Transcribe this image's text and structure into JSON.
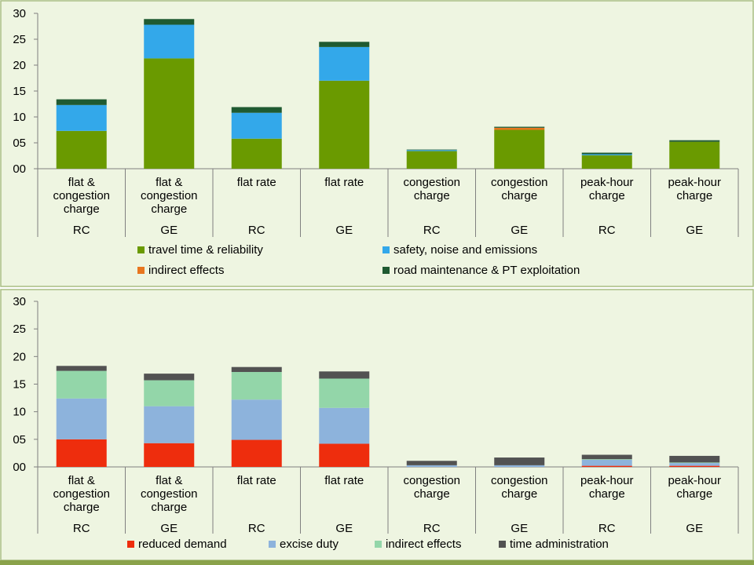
{
  "colors": {
    "panel_background": "#eef5e1",
    "panel_border": "#a9bd82",
    "page_bottom_rule": "#8aa24a"
  },
  "chart_data": [
    {
      "type": "bar",
      "stacked": true,
      "title": "",
      "xlabel": "",
      "ylabel": "",
      "ylim": [
        0,
        30
      ],
      "yticks": [
        "00",
        "05",
        "10",
        "15",
        "20",
        "25",
        "30"
      ],
      "grid": false,
      "legend_position": "bottom",
      "categories": [
        {
          "lines": [
            "flat  &",
            "congestion",
            "charge"
          ],
          "group": "RC"
        },
        {
          "lines": [
            "flat  &",
            "congestion",
            "charge"
          ],
          "group": "GE"
        },
        {
          "lines": [
            "flat rate"
          ],
          "group": "RC"
        },
        {
          "lines": [
            "flat rate"
          ],
          "group": "GE"
        },
        {
          "lines": [
            "congestion",
            "charge"
          ],
          "group": "RC"
        },
        {
          "lines": [
            "congestion",
            "charge"
          ],
          "group": "GE"
        },
        {
          "lines": [
            "peak-hour",
            "charge"
          ],
          "group": "RC"
        },
        {
          "lines": [
            "peak-hour",
            "charge"
          ],
          "group": "GE"
        }
      ],
      "series": [
        {
          "name": "travel time & reliability",
          "color": "#6a9a00",
          "values": [
            7.3,
            21.3,
            5.8,
            17.0,
            3.4,
            7.5,
            2.6,
            5.2
          ]
        },
        {
          "name": "safety, noise and emissions",
          "color": "#33a8ea",
          "values": [
            5.0,
            6.5,
            5.0,
            6.5,
            0.2,
            0.0,
            0.2,
            0.0
          ]
        },
        {
          "name": "indirect effects",
          "color": "#e8761f",
          "values": [
            0.0,
            0.0,
            0.0,
            0.0,
            0.0,
            0.4,
            0.0,
            0.0
          ]
        },
        {
          "name": "road maintenance & PT exploitation",
          "color": "#1f5a31",
          "values": [
            1.1,
            1.1,
            1.1,
            1.0,
            0.1,
            0.2,
            0.3,
            0.3
          ]
        }
      ]
    },
    {
      "type": "bar",
      "stacked": true,
      "title": "",
      "xlabel": "",
      "ylabel": "",
      "ylim": [
        0,
        30
      ],
      "yticks": [
        "00",
        "05",
        "10",
        "15",
        "20",
        "25",
        "30"
      ],
      "grid": false,
      "legend_position": "bottom",
      "categories": [
        {
          "lines": [
            "flat  &",
            "congestion",
            "charge"
          ],
          "group": "RC"
        },
        {
          "lines": [
            "flat  &",
            "congestion",
            "charge"
          ],
          "group": "GE"
        },
        {
          "lines": [
            "flat rate"
          ],
          "group": "RC"
        },
        {
          "lines": [
            "flat rate"
          ],
          "group": "GE"
        },
        {
          "lines": [
            "congestion",
            "charge"
          ],
          "group": "RC"
        },
        {
          "lines": [
            "congestion",
            "charge"
          ],
          "group": "GE"
        },
        {
          "lines": [
            "peak-hour",
            "charge"
          ],
          "group": "RC"
        },
        {
          "lines": [
            "peak-hour",
            "charge"
          ],
          "group": "GE"
        }
      ],
      "series": [
        {
          "name": "reduced demand",
          "color": "#ee2d0d",
          "values": [
            5.0,
            4.3,
            4.9,
            4.2,
            0.0,
            0.0,
            0.2,
            0.2
          ]
        },
        {
          "name": "excise duty",
          "color": "#8db3dc",
          "values": [
            7.4,
            6.7,
            7.3,
            6.5,
            0.3,
            0.3,
            1.1,
            0.5
          ]
        },
        {
          "name": "indirect effects",
          "color": "#93d6a9",
          "values": [
            5.0,
            4.7,
            5.0,
            5.3,
            0.0,
            0.0,
            0.1,
            0.1
          ]
        },
        {
          "name": "time administration",
          "color": "#525252",
          "values": [
            0.9,
            1.2,
            0.9,
            1.3,
            0.8,
            1.4,
            0.8,
            1.2
          ]
        }
      ]
    }
  ]
}
